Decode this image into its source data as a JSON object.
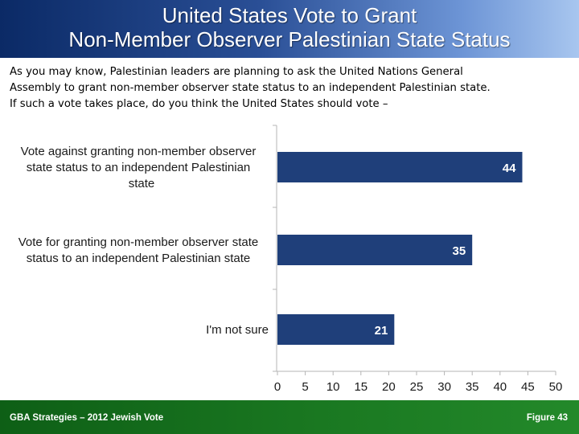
{
  "header": {
    "title_line1": "United States Vote to Grant",
    "title_line2": "Non-Member Observer Palestinian State Status"
  },
  "question": {
    "line1": "As you may know, Palestinian leaders are planning to ask the United Nations General",
    "line2": "Assembly to grant non-member observer state status to an independent Palestinian state.",
    "line3": "If such a vote takes place, do you think the United States should vote –"
  },
  "chart_data": {
    "type": "bar",
    "orientation": "horizontal",
    "categories": [
      [
        "Vote against granting non-member observer",
        "state status to an independent Palestinian",
        "state"
      ],
      [
        "Vote for granting non-member observer state",
        "status to an independent Palestinian state"
      ],
      [
        "I'm not sure"
      ]
    ],
    "values": [
      44,
      35,
      21
    ],
    "xlim": [
      0,
      50
    ],
    "xticks": [
      0,
      5,
      10,
      15,
      20,
      25,
      30,
      35,
      40,
      45,
      50
    ],
    "bar_color": "#1f3f7a",
    "grid": false,
    "data_labels": true
  },
  "footer": {
    "left": "GBA Strategies – 2012 Jewish Vote",
    "right": "Figure 43"
  },
  "colors": {
    "header_dark": "#0b2a66",
    "header_light": "#a8c6ef",
    "footer_green": "#1b7a22",
    "bar": "#1f3f7a"
  }
}
